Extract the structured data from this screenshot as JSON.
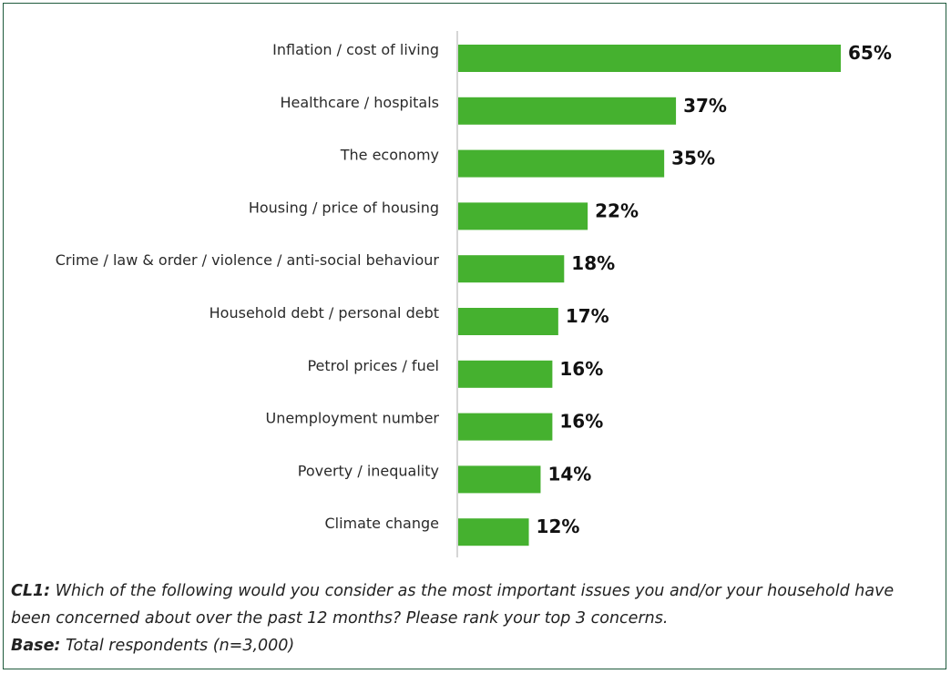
{
  "chart_data": {
    "type": "bar",
    "orientation": "horizontal",
    "categories": [
      "Inflation / cost of living",
      "Healthcare / hospitals",
      "The economy",
      "Housing / price of housing",
      "Crime / law & order / violence / anti-social behaviour",
      "Household debt / personal debt",
      "Petrol prices / fuel",
      "Unemployment number",
      "Poverty / inequality",
      "Climate change"
    ],
    "values": [
      65,
      37,
      35,
      22,
      18,
      17,
      16,
      16,
      14,
      12
    ],
    "value_labels": [
      "65%",
      "37%",
      "35%",
      "22%",
      "18%",
      "17%",
      "16%",
      "16%",
      "14%",
      "12%"
    ],
    "unit": "%",
    "xlim": [
      0,
      65
    ],
    "grid": false,
    "legend": "none",
    "bar_color": "#45b12f",
    "axis_color": "#c8c8c8"
  },
  "footnote": {
    "question_key": "CL1:",
    "question_text": " Which of the following would you consider as the most important issues you and/or your household have been concerned about over the past 12 months? Please rank your top 3 concerns.",
    "base_key": "Base:",
    "base_text": " Total respondents (n=3,000)"
  },
  "colors": {
    "frame_border": "#1f5b3c",
    "text": "#222222"
  }
}
